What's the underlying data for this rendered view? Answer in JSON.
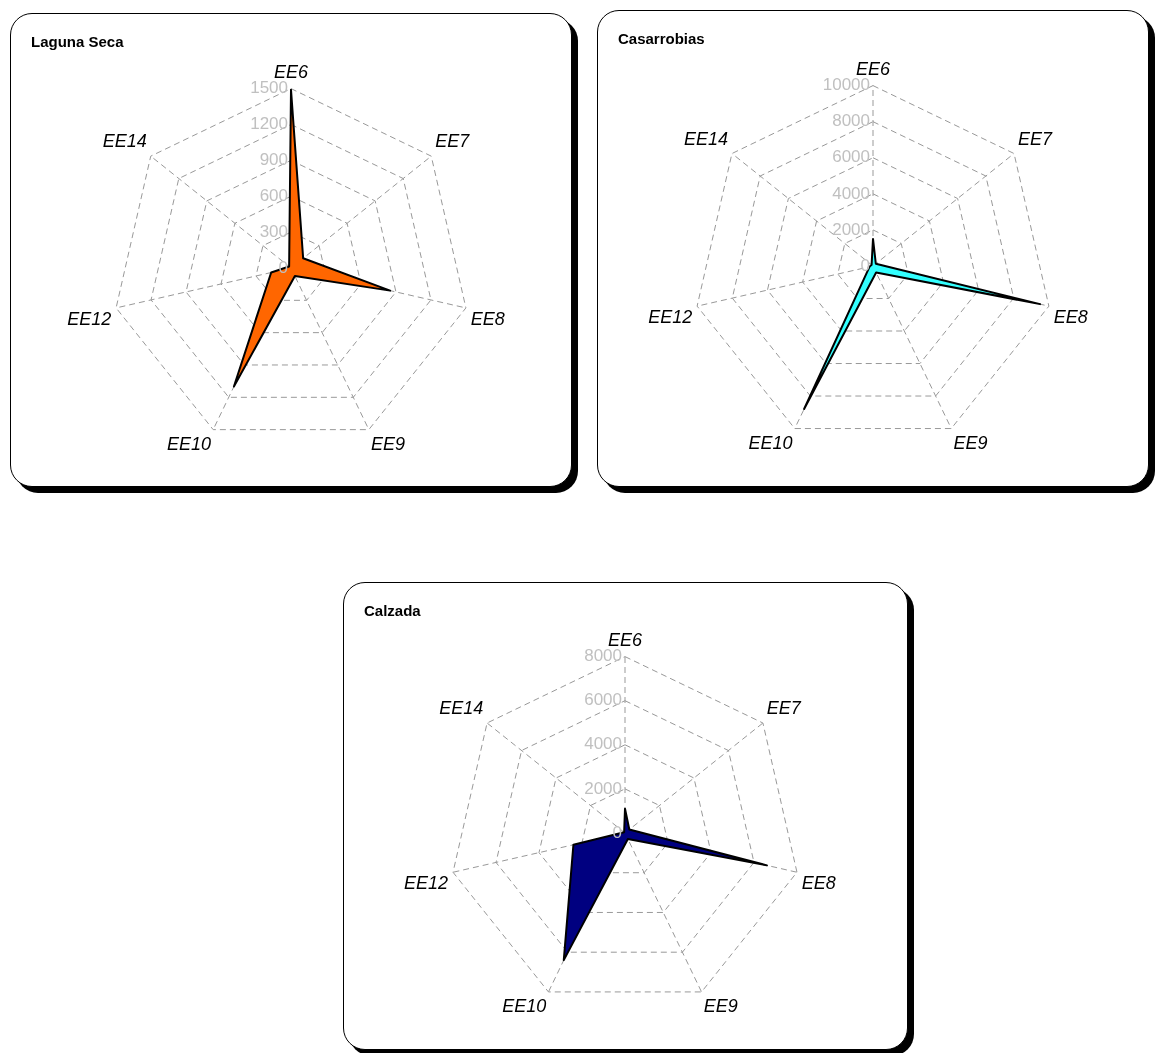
{
  "chart_data": [
    {
      "type": "radar",
      "title": "Laguna Seca",
      "categories": [
        "EE6",
        "EE7",
        "EE8",
        "EE9",
        "EE10",
        "EE12",
        "EE14"
      ],
      "ylim": [
        0,
        1500
      ],
      "yticks": [
        0,
        300,
        600,
        900,
        1200,
        1500
      ],
      "grid": true,
      "series": [
        {
          "color": "#ff6600",
          "values": [
            1490,
            130,
            850,
            75,
            1100,
            170,
            20
          ]
        }
      ]
    },
    {
      "type": "radar",
      "title": "Casarrobias",
      "categories": [
        "EE6",
        "EE7",
        "EE8",
        "EE9",
        "EE10",
        "EE12",
        "EE14"
      ],
      "ylim": [
        0,
        10000
      ],
      "yticks": [
        0,
        2000,
        4000,
        6000,
        8000,
        10000
      ],
      "grid": true,
      "series": [
        {
          "color": "#33ffff",
          "values": [
            1500,
            200,
            9500,
            400,
            8800,
            200,
            100
          ]
        }
      ]
    },
    {
      "type": "radar",
      "title": "Calzada",
      "categories": [
        "EE6",
        "EE7",
        "EE8",
        "EE9",
        "EE10",
        "EE12",
        "EE14"
      ],
      "ylim": [
        0,
        8000
      ],
      "yticks": [
        0,
        2000,
        4000,
        6000,
        8000
      ],
      "grid": true,
      "series": [
        {
          "color": "#000080",
          "values": [
            1100,
            250,
            6600,
            300,
            6400,
            2400,
            50
          ]
        }
      ]
    }
  ]
}
